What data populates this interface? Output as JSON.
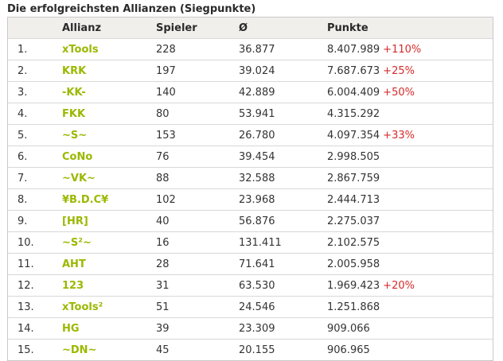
{
  "title": "Die erfolgreichsten Allianzen (Siegpunkte)",
  "columns": [
    "",
    "Allianz",
    "Spieler",
    "Ø",
    "Punkte"
  ],
  "rows": [
    {
      "rank": "1.",
      "name": "xTools",
      "players": "228",
      "avg": "36.877",
      "points": "8.407.989",
      "delta": "+110%"
    },
    {
      "rank": "2.",
      "name": "KRK",
      "players": "197",
      "avg": "39.024",
      "points": "7.687.673",
      "delta": "+25%"
    },
    {
      "rank": "3.",
      "name": "-KK-",
      "players": "140",
      "avg": "42.889",
      "points": "6.004.409",
      "delta": "+50%"
    },
    {
      "rank": "4.",
      "name": "FKK",
      "players": "80",
      "avg": "53.941",
      "points": "4.315.292",
      "delta": ""
    },
    {
      "rank": "5.",
      "name": "~S~",
      "players": "153",
      "avg": "26.780",
      "points": "4.097.354",
      "delta": "+33%"
    },
    {
      "rank": "6.",
      "name": "CoNo",
      "players": "76",
      "avg": "39.454",
      "points": "2.998.505",
      "delta": ""
    },
    {
      "rank": "7.",
      "name": "~VK~",
      "players": "88",
      "avg": "32.588",
      "points": "2.867.759",
      "delta": ""
    },
    {
      "rank": "8.",
      "name": "¥B.D.C¥",
      "players": "102",
      "avg": "23.968",
      "points": "2.444.713",
      "delta": ""
    },
    {
      "rank": "9.",
      "name": "[HR]",
      "players": "40",
      "avg": "56.876",
      "points": "2.275.037",
      "delta": ""
    },
    {
      "rank": "10.",
      "name": "~S²~",
      "players": "16",
      "avg": "131.411",
      "points": "2.102.575",
      "delta": ""
    },
    {
      "rank": "11.",
      "name": "AHT",
      "players": "28",
      "avg": "71.641",
      "points": "2.005.958",
      "delta": ""
    },
    {
      "rank": "12.",
      "name": "123",
      "players": "31",
      "avg": "63.530",
      "points": "1.969.423",
      "delta": "+20%"
    },
    {
      "rank": "13.",
      "name": "xTools²",
      "players": "51",
      "avg": "24.546",
      "points": "1.251.868",
      "delta": ""
    },
    {
      "rank": "14.",
      "name": "HG",
      "players": "39",
      "avg": "23.309",
      "points": "909.066",
      "delta": ""
    },
    {
      "rank": "15.",
      "name": "~DN~",
      "players": "45",
      "avg": "20.155",
      "points": "906.965",
      "delta": ""
    }
  ],
  "colors": {
    "link": "#9bb800",
    "delta": "#d62a2a",
    "header_bg": "#f0efeb"
  }
}
